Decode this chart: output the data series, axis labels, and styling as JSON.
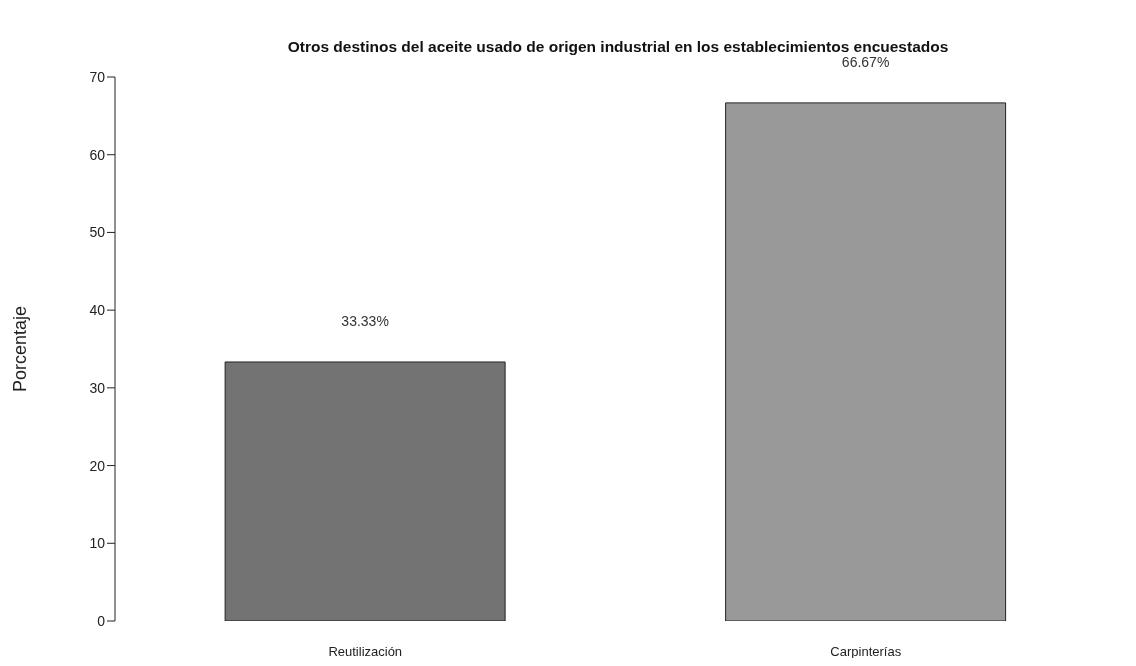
{
  "chart_data": {
    "type": "bar",
    "title": "Otros destinos del aceite usado de origen industrial en los establecimientos encuestados",
    "ylabel": "Porcentaje",
    "categories": [
      "Reutilización",
      "Carpinterías"
    ],
    "values": [
      33.33,
      66.67
    ],
    "colors": [
      "#737373",
      "#999999"
    ],
    "value_labels": [
      "33.33%",
      "66.67%"
    ],
    "ylim": [
      0,
      70
    ],
    "yticks": [
      0,
      10,
      20,
      30,
      40,
      50,
      60,
      70
    ],
    "grid": false,
    "legend": false
  }
}
